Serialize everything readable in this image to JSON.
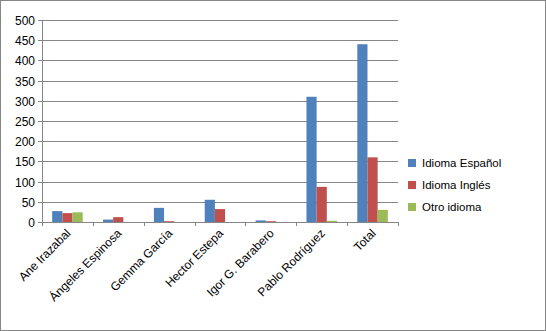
{
  "chart_data": {
    "type": "bar",
    "categories": [
      "Ane Irazabal",
      "Ángeles Espinosa",
      "Gemma García",
      "Hector Estepa",
      "Igor G. Barabero",
      "Pablo Rodríguez",
      "Total"
    ],
    "series": [
      {
        "name": "Idioma Español",
        "color": "#4f81bd",
        "values": [
          27,
          6,
          35,
          55,
          4,
          310,
          440
        ]
      },
      {
        "name": "Idioma Inglés",
        "color": "#c0504d",
        "values": [
          22,
          12,
          2,
          32,
          2,
          87,
          160
        ]
      },
      {
        "name": "Otro idioma",
        "color": "#9bbb59",
        "values": [
          24,
          0,
          0,
          0,
          0,
          3,
          30
        ]
      }
    ],
    "ylim": [
      0,
      500
    ],
    "yticks": [
      0,
      50,
      100,
      150,
      200,
      250,
      300,
      350,
      400,
      450,
      500
    ],
    "grid": true,
    "legend": "right"
  }
}
